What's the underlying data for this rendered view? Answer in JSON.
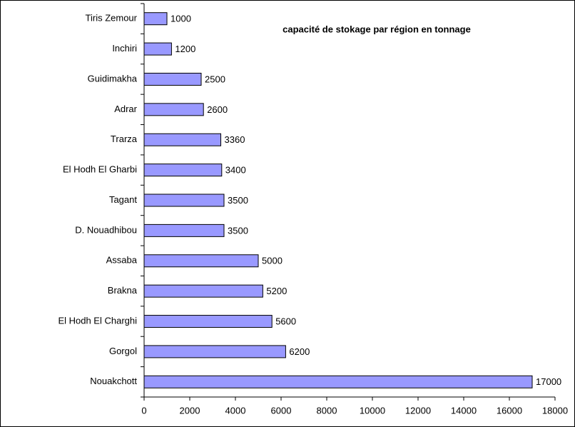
{
  "chart_data": {
    "type": "barh",
    "title": "capacité de stokage par région en tonnage",
    "categories": [
      "Tiris Zemour",
      "Inchiri",
      "Guidimakha",
      "Adrar",
      "Trarza",
      "El Hodh El Gharbi",
      "Tagant",
      "D. Nouadhibou",
      "Assaba",
      "Brakna",
      "El Hodh El Charghi",
      "Gorgol",
      "Nouakchott"
    ],
    "values": [
      1000,
      1200,
      2500,
      2600,
      3360,
      3400,
      3500,
      3500,
      5000,
      5200,
      5600,
      6200,
      17000
    ],
    "color": "#9999ff",
    "xlim": [
      0,
      18000
    ],
    "xticks": [
      0,
      2000,
      4000,
      6000,
      8000,
      10000,
      12000,
      14000,
      16000,
      18000
    ],
    "grid": false
  }
}
